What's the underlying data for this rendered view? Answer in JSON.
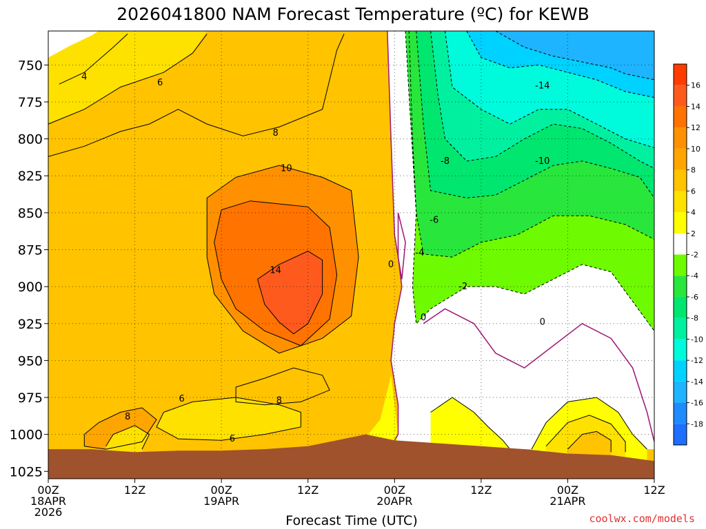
{
  "chart_data": {
    "type": "heatmap",
    "title": "2026041800 NAM Forecast Temperature (ºC) for KEWB",
    "xlabel": "Forecast Time (UTC)",
    "ylabel": "",
    "x_unit": "forecast hour",
    "xlim": [
      0,
      84
    ],
    "x_ticks": [
      {
        "hour": 0,
        "lines": [
          "00Z",
          "18APR",
          "2026"
        ]
      },
      {
        "hour": 12,
        "lines": [
          "12Z"
        ]
      },
      {
        "hour": 24,
        "lines": [
          "00Z",
          "19APR"
        ]
      },
      {
        "hour": 36,
        "lines": [
          "12Z"
        ]
      },
      {
        "hour": 48,
        "lines": [
          "00Z",
          "20APR"
        ]
      },
      {
        "hour": 60,
        "lines": [
          "12Z"
        ]
      },
      {
        "hour": 72,
        "lines": [
          "00Z",
          "21APR"
        ]
      },
      {
        "hour": 84,
        "lines": [
          "12Z"
        ]
      }
    ],
    "y_unit": "pressure (hPa)",
    "ylim": [
      1030,
      727
    ],
    "y_ticks": [
      750,
      775,
      800,
      825,
      850,
      875,
      900,
      925,
      950,
      975,
      1000,
      1025
    ],
    "grid": true,
    "colorbar": {
      "placement": "right",
      "levels": [
        -20,
        -18,
        -16,
        -14,
        -12,
        -10,
        -8,
        -6,
        -4,
        -2,
        2,
        4,
        6,
        8,
        10,
        12,
        14,
        16,
        18
      ],
      "tick_labels": [
        -18,
        -16,
        -14,
        -12,
        -10,
        -8,
        -6,
        -4,
        -2,
        2,
        4,
        6,
        8,
        10,
        12,
        14,
        16
      ],
      "colors": [
        "#1e6eff",
        "#1e8cff",
        "#1eb4ff",
        "#00d2ff",
        "#00fadc",
        "#00f0a0",
        "#00e66e",
        "#28e63c",
        "#6efa00",
        "#ffffff",
        "#ffff00",
        "#ffe100",
        "#ffc300",
        "#ffa500",
        "#ff9100",
        "#ff7300",
        "#ff5a1e",
        "#ff3c00"
      ]
    },
    "surface_pressure": [
      [
        0,
        1010
      ],
      [
        6,
        1010
      ],
      [
        12,
        1012
      ],
      [
        18,
        1011
      ],
      [
        24,
        1011
      ],
      [
        30,
        1010
      ],
      [
        36,
        1008
      ],
      [
        40,
        1004
      ],
      [
        44,
        1000
      ],
      [
        48,
        1004
      ],
      [
        54,
        1006
      ],
      [
        60,
        1008
      ],
      [
        66,
        1010
      ],
      [
        72,
        1013
      ],
      [
        78,
        1014
      ],
      [
        84,
        1018
      ]
    ],
    "surface_color": "#a0522d",
    "series": [
      {
        "level": 4,
        "points": [
          [
            1.5,
            763
          ],
          [
            5,
            755
          ],
          [
            9,
            738
          ],
          [
            11,
            729
          ]
        ]
      },
      {
        "level": 6,
        "points": [
          [
            0,
            790
          ],
          [
            5,
            780
          ],
          [
            10,
            765
          ],
          [
            16,
            755
          ],
          [
            20,
            742
          ],
          [
            22,
            729
          ]
        ]
      },
      {
        "level": 8,
        "points": [
          [
            0,
            812
          ],
          [
            5,
            805
          ],
          [
            10,
            795
          ],
          [
            14,
            790
          ],
          [
            18,
            780
          ],
          [
            22,
            790
          ],
          [
            27,
            798
          ],
          [
            32,
            792
          ],
          [
            38,
            780
          ],
          [
            40,
            740
          ],
          [
            41,
            729
          ]
        ]
      },
      {
        "level": 10,
        "points": [
          [
            22,
            880
          ],
          [
            22,
            840
          ],
          [
            26,
            826
          ],
          [
            32,
            818
          ],
          [
            38,
            826
          ],
          [
            42,
            835
          ],
          [
            43,
            880
          ],
          [
            42,
            920
          ],
          [
            38,
            935
          ],
          [
            32,
            945
          ],
          [
            27,
            930
          ],
          [
            23,
            905
          ],
          [
            22,
            880
          ]
        ]
      },
      {
        "level": 12,
        "points": [
          [
            23,
            870
          ],
          [
            24,
            848
          ],
          [
            28,
            842
          ],
          [
            32,
            844
          ],
          [
            36,
            846
          ],
          [
            39,
            860
          ],
          [
            40,
            892
          ],
          [
            39,
            922
          ],
          [
            35,
            940
          ],
          [
            30,
            930
          ],
          [
            26,
            915
          ],
          [
            24,
            895
          ],
          [
            23,
            870
          ]
        ]
      },
      {
        "level": 14,
        "points": [
          [
            29,
            895
          ],
          [
            32,
            885
          ],
          [
            36,
            876
          ],
          [
            38,
            882
          ],
          [
            38,
            905
          ],
          [
            36,
            925
          ],
          [
            34,
            932
          ],
          [
            32,
            924
          ],
          [
            30,
            912
          ],
          [
            29,
            895
          ]
        ]
      },
      {
        "level": 8,
        "points": [
          [
            26,
            968
          ],
          [
            30,
            962
          ],
          [
            34,
            955
          ],
          [
            38,
            960
          ],
          [
            39,
            970
          ],
          [
            35,
            978
          ],
          [
            30,
            980
          ],
          [
            26,
            978
          ],
          [
            26,
            968
          ]
        ]
      },
      {
        "level": 6,
        "points": [
          [
            16,
            985
          ],
          [
            20,
            978
          ],
          [
            26,
            975
          ],
          [
            32,
            980
          ],
          [
            35,
            985
          ],
          [
            35,
            995
          ],
          [
            30,
            1000
          ],
          [
            24,
            1004
          ],
          [
            18,
            1003
          ],
          [
            15,
            995
          ],
          [
            16,
            985
          ]
        ]
      },
      {
        "level": 8,
        "points": [
          [
            5,
            1000
          ],
          [
            7,
            992
          ],
          [
            10,
            985
          ],
          [
            13,
            982
          ],
          [
            15,
            990
          ],
          [
            13,
            1005
          ],
          [
            8,
            1010
          ],
          [
            5,
            1008
          ],
          [
            5,
            1000
          ]
        ]
      },
      {
        "level": 6,
        "points": [
          [
            8,
            1008
          ],
          [
            9,
            1000
          ],
          [
            12,
            994
          ],
          [
            14,
            1000
          ],
          [
            13,
            1010
          ]
        ]
      },
      {
        "level": 0,
        "points": [
          [
            47,
            727
          ],
          [
            47.5,
            800
          ],
          [
            48,
            865
          ],
          [
            48.5,
            880
          ],
          [
            49,
            900
          ],
          [
            48,
            925
          ],
          [
            47.5,
            950
          ],
          [
            48.5,
            980
          ],
          [
            48.5,
            1000
          ],
          [
            48,
            1004
          ]
        ]
      },
      {
        "level": 0,
        "points": [
          [
            52,
            925
          ],
          [
            55,
            915
          ],
          [
            59,
            925
          ],
          [
            62,
            945
          ],
          [
            66,
            955
          ],
          [
            70,
            940
          ],
          [
            74,
            925
          ],
          [
            78,
            935
          ],
          [
            81,
            955
          ],
          [
            83,
            985
          ],
          [
            84,
            1005
          ]
        ]
      },
      {
        "level": 0,
        "points": [
          [
            48.5,
            850
          ],
          [
            49.5,
            870
          ],
          [
            49,
            895
          ],
          [
            48.5,
            880
          ],
          [
            48.5,
            850
          ]
        ]
      },
      {
        "level": -2,
        "points": [
          [
            50,
            727
          ],
          [
            50.5,
            800
          ],
          [
            51,
            850
          ],
          [
            50.5,
            900
          ],
          [
            51,
            925
          ],
          [
            53,
            915
          ],
          [
            58,
            900
          ],
          [
            62,
            900
          ],
          [
            66,
            905
          ],
          [
            70,
            895
          ],
          [
            74,
            885
          ],
          [
            78,
            890
          ],
          [
            81,
            910
          ],
          [
            84,
            930
          ]
        ]
      },
      {
        "level": -4,
        "points": [
          [
            49.5,
            727
          ],
          [
            50,
            770
          ],
          [
            51,
            850
          ],
          [
            52,
            878
          ],
          [
            56,
            880
          ],
          [
            60,
            870
          ],
          [
            65,
            865
          ],
          [
            70,
            852
          ],
          [
            75,
            852
          ],
          [
            80,
            858
          ],
          [
            84,
            868
          ]
        ]
      },
      {
        "level": -6,
        "points": [
          [
            51,
            727
          ],
          [
            52,
            790
          ],
          [
            53,
            835
          ],
          [
            58,
            840
          ],
          [
            62,
            838
          ],
          [
            66,
            828
          ],
          [
            70,
            818
          ],
          [
            74,
            815
          ],
          [
            78,
            820
          ],
          [
            82,
            826
          ],
          [
            84,
            840
          ]
        ]
      },
      {
        "level": -8,
        "points": [
          [
            53,
            727
          ],
          [
            54,
            770
          ],
          [
            55,
            800
          ],
          [
            58,
            815
          ],
          [
            62,
            812
          ],
          [
            66,
            800
          ],
          [
            70,
            790
          ],
          [
            74,
            793
          ],
          [
            78,
            803
          ],
          [
            82,
            815
          ],
          [
            84,
            820
          ]
        ]
      },
      {
        "level": -10,
        "points": [
          [
            55,
            727
          ],
          [
            56,
            765
          ],
          [
            60,
            780
          ],
          [
            64,
            790
          ],
          [
            68,
            780
          ],
          [
            72,
            780
          ],
          [
            76,
            790
          ],
          [
            80,
            800
          ],
          [
            84,
            806
          ]
        ]
      },
      {
        "level": -12,
        "points": [
          [
            58,
            727
          ],
          [
            60,
            745
          ],
          [
            64,
            752
          ],
          [
            68,
            750
          ],
          [
            72,
            755
          ],
          [
            76,
            760
          ],
          [
            80,
            768
          ],
          [
            84,
            772
          ]
        ]
      },
      {
        "level": -14,
        "points": [
          [
            62,
            727
          ],
          [
            66,
            738
          ],
          [
            70,
            744
          ],
          [
            74,
            748
          ],
          [
            78,
            752
          ],
          [
            80,
            756
          ],
          [
            84,
            760
          ]
        ]
      },
      {
        "level": 2,
        "points": [
          [
            53,
            985
          ],
          [
            56,
            975
          ],
          [
            59,
            985
          ],
          [
            61,
            995
          ],
          [
            63,
            1004
          ],
          [
            64,
            1010
          ]
        ]
      },
      {
        "level": 2,
        "points": [
          [
            67,
            1010
          ],
          [
            69,
            992
          ],
          [
            72,
            978
          ],
          [
            76,
            975
          ],
          [
            79,
            985
          ],
          [
            81,
            1000
          ],
          [
            83,
            1010
          ]
        ]
      },
      {
        "level": 4,
        "points": [
          [
            69,
            1008
          ],
          [
            72,
            992
          ],
          [
            75,
            987
          ],
          [
            78,
            993
          ],
          [
            80,
            1005
          ],
          [
            80,
            1012
          ]
        ]
      },
      {
        "level": 6,
        "points": [
          [
            72,
            1010
          ],
          [
            74,
            1000
          ],
          [
            76,
            998
          ],
          [
            78,
            1004
          ],
          [
            78,
            1012
          ]
        ]
      }
    ],
    "contour_labels": [
      {
        "text": "4",
        "x": 5,
        "y": 758
      },
      {
        "text": "6",
        "x": 15.5,
        "y": 762
      },
      {
        "text": "8",
        "x": 31.5,
        "y": 796
      },
      {
        "text": "10",
        "x": 33,
        "y": 820
      },
      {
        "text": "14",
        "x": 31.5,
        "y": 889
      },
      {
        "text": "6",
        "x": 18.5,
        "y": 976
      },
      {
        "text": "8",
        "x": 11,
        "y": 988
      },
      {
        "text": "8",
        "x": 32,
        "y": 977
      },
      {
        "text": "6",
        "x": 25.5,
        "y": 1003
      },
      {
        "text": "0",
        "x": 47.5,
        "y": 885
      },
      {
        "text": "0",
        "x": 52,
        "y": 921
      },
      {
        "text": "0",
        "x": 68.5,
        "y": 924
      },
      {
        "text": "-2",
        "x": 57.5,
        "y": 900
      },
      {
        "text": "-4",
        "x": 51.5,
        "y": 877
      },
      {
        "text": "-6",
        "x": 53.5,
        "y": 855
      },
      {
        "text": "-8",
        "x": 55,
        "y": 815
      },
      {
        "text": "-10",
        "x": 68.5,
        "y": 815
      },
      {
        "text": "-14",
        "x": 68.5,
        "y": 764
      }
    ]
  },
  "credit": "coolwx.com/models"
}
